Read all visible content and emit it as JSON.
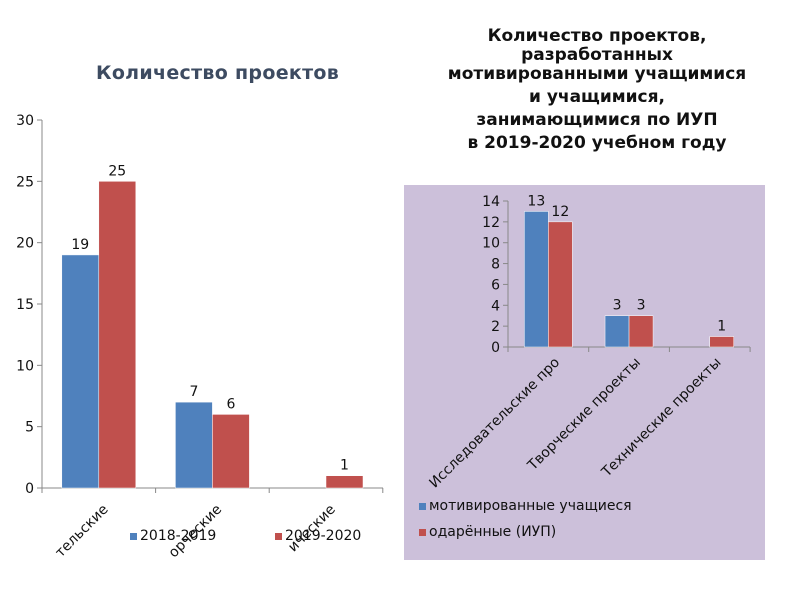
{
  "chart_data": [
    {
      "type": "bar",
      "title": "Количество проектов",
      "categories": [
        "Исследовательские проекты",
        "Творческие проекты",
        "Технические проекты"
      ],
      "category_tick_labels_visible": [
        "тельские",
        "орческие",
        "ические"
      ],
      "series": [
        {
          "name": "2018-2019",
          "values": [
            19,
            7,
            null
          ],
          "color": "#4f81bd"
        },
        {
          "name": "2019-2020",
          "values": [
            25,
            6,
            1
          ],
          "color": "#c0504d"
        }
      ],
      "yticks": [
        "0",
        "5",
        "10",
        "15",
        "20",
        "25",
        "30"
      ],
      "ylim": [
        0,
        30
      ],
      "xlabel": "",
      "ylabel": "",
      "grid": false,
      "legend": "bottom"
    },
    {
      "type": "bar",
      "title_lines": [
        "Количество проектов,",
        "разработанных",
        "мотивированными учащимися",
        "и   учащимися,",
        "занимающимися по ИУП",
        "в 2019-2020 учебном году"
      ],
      "categories": [
        "Исследовательские про",
        "Творческие проекты",
        "Технические проекты"
      ],
      "series": [
        {
          "name": "мотивированные учащиеся",
          "values": [
            13,
            3,
            null
          ],
          "color": "#4f81bd"
        },
        {
          "name": "одарённые (ИУП)",
          "values": [
            12,
            3,
            1
          ],
          "color": "#c0504d"
        }
      ],
      "yticks": [
        "0",
        "2",
        "4",
        "6",
        "8",
        "10",
        "12",
        "14"
      ],
      "ylim": [
        0,
        14
      ],
      "xlabel": "",
      "ylabel": "",
      "grid": false,
      "legend": "bottom",
      "background": "#ccc0da"
    }
  ]
}
